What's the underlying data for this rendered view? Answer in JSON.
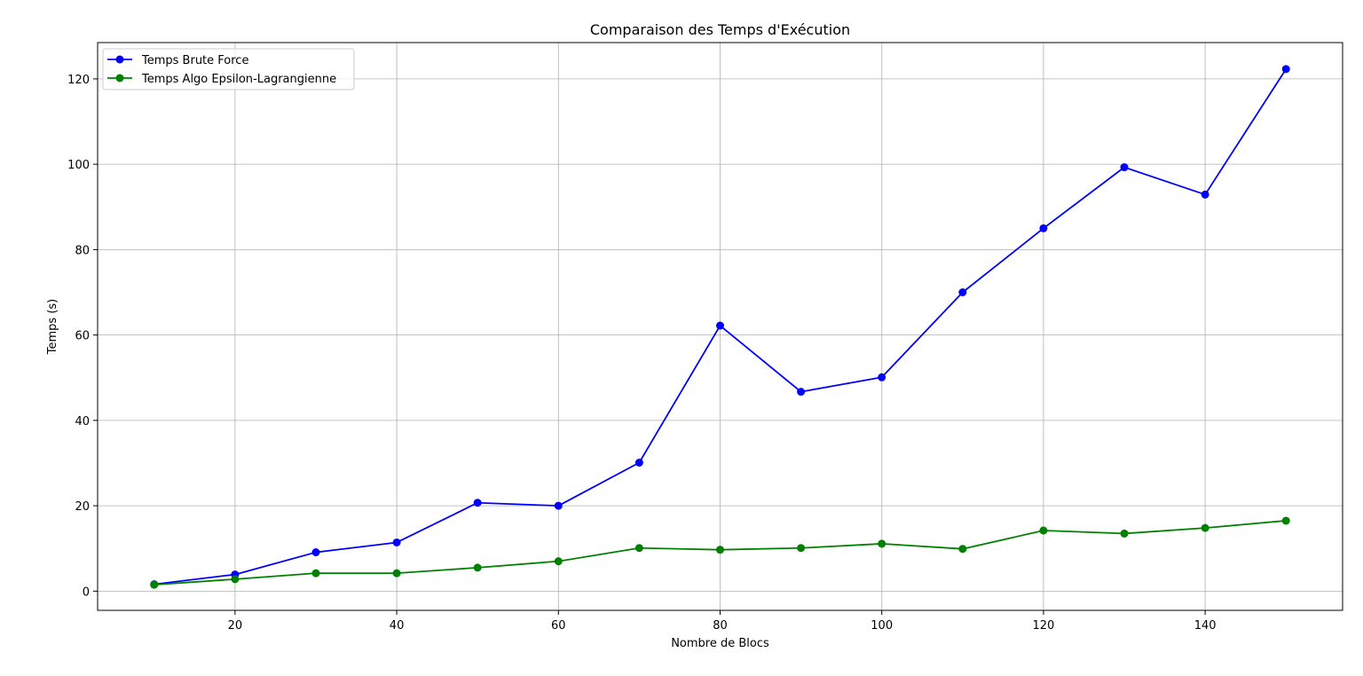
{
  "chart_data": {
    "type": "line",
    "title": "Comparaison des Temps d'Exécution",
    "xlabel": "Nombre de Blocs",
    "ylabel": "Temps (s)",
    "xlim": [
      3,
      157
    ],
    "ylim": [
      -4.5,
      128.5
    ],
    "xticks": [
      20,
      40,
      60,
      80,
      100,
      120,
      140
    ],
    "yticks": [
      0,
      20,
      40,
      60,
      80,
      100,
      120
    ],
    "grid": true,
    "legend_position": "top-left",
    "x": [
      10,
      20,
      30,
      40,
      50,
      60,
      70,
      80,
      90,
      100,
      110,
      120,
      130,
      140,
      150
    ],
    "series": [
      {
        "name": "Temps Brute Force",
        "color": "#0000ff",
        "marker": "circle",
        "values": [
          1.6,
          3.9,
          9.1,
          11.4,
          20.7,
          20.0,
          30.1,
          62.2,
          46.7,
          50.1,
          70.0,
          85.0,
          99.3,
          92.9,
          122.3
        ]
      },
      {
        "name": "Temps Algo Epsilon-Lagrangienne",
        "color": "#008000",
        "marker": "circle",
        "values": [
          1.5,
          2.8,
          4.2,
          4.2,
          5.5,
          7.0,
          10.1,
          9.7,
          10.1,
          11.1,
          9.9,
          14.2,
          13.5,
          14.8,
          16.5
        ]
      }
    ]
  }
}
